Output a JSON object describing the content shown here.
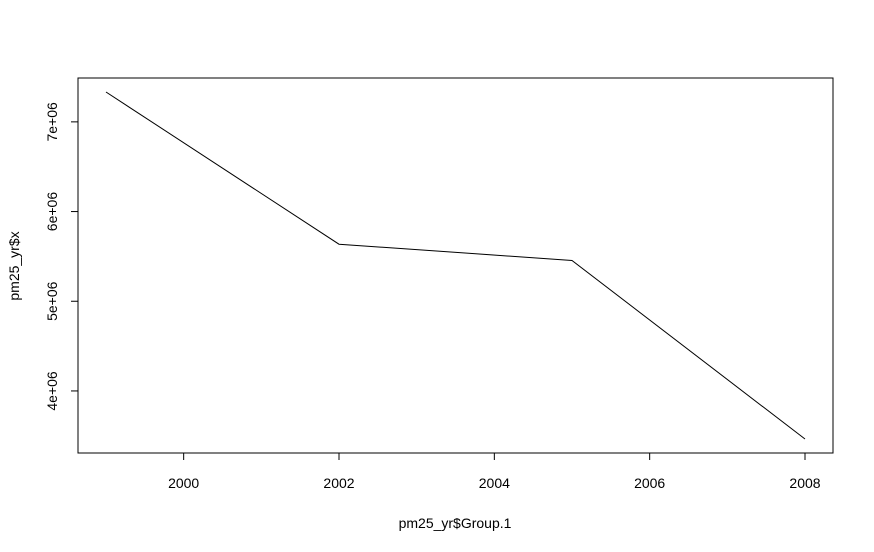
{
  "chart_data": {
    "type": "line",
    "title": "",
    "xlabel": "pm25_yr$Group.1",
    "ylabel": "pm25_yr$x",
    "x": [
      1999,
      2002,
      2005,
      2008
    ],
    "series": [
      {
        "values": [
          7332967,
          5635780,
          5454703,
          3464206
        ],
        "color": "#000000"
      }
    ],
    "xlim": [
      1999,
      2008
    ],
    "ylim": [
      3464206,
      7332967
    ],
    "x_ticks": [
      2000,
      2002,
      2004,
      2006,
      2008
    ],
    "x_tick_labels": [
      "2000",
      "2002",
      "2004",
      "2006",
      "2008"
    ],
    "y_ticks": [
      4000000,
      5000000,
      6000000,
      7000000
    ],
    "y_tick_labels": [
      "4e+06",
      "5e+06",
      "6e+06",
      "7e+06"
    ],
    "grid": false,
    "legend": "none"
  }
}
